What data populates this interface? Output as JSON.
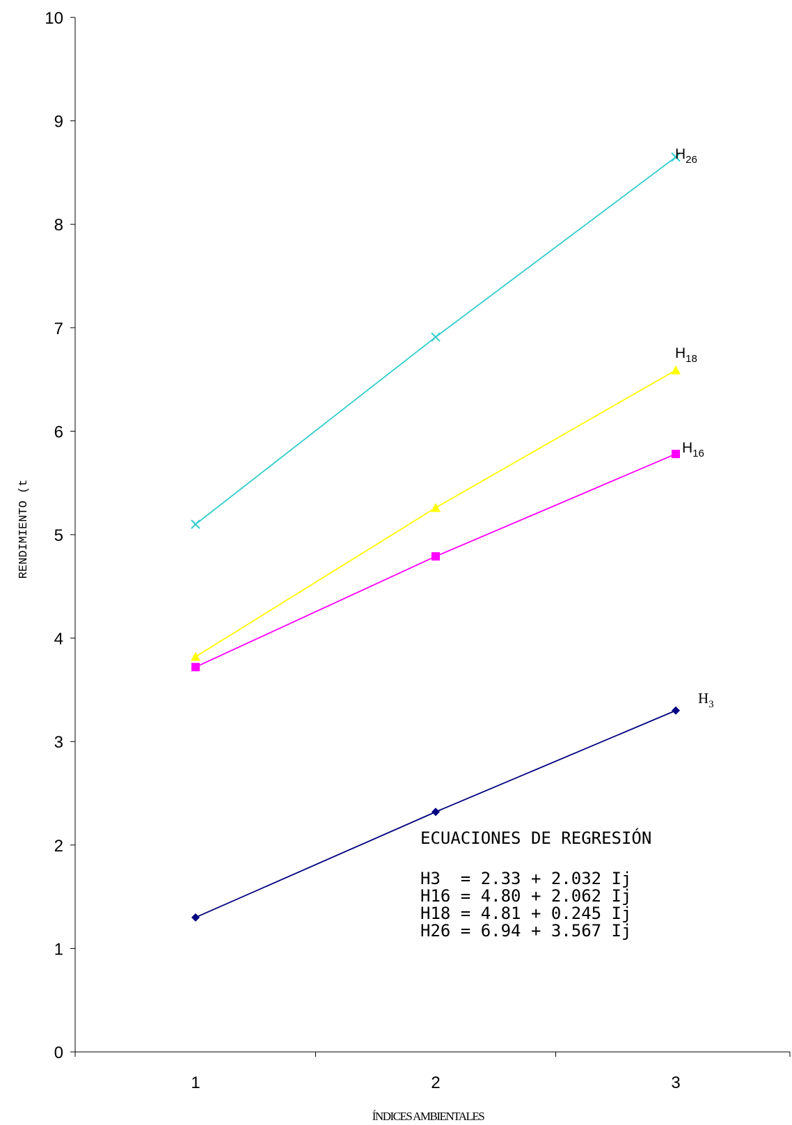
{
  "chart_data": {
    "type": "line",
    "x": [
      1,
      2,
      3
    ],
    "x_tick_labels": [
      "1",
      "2",
      "3"
    ],
    "y_tick_labels": [
      "0",
      "1",
      "2",
      "3",
      "4",
      "5",
      "6",
      "7",
      "8",
      "9",
      "10"
    ],
    "ylim": [
      0,
      10
    ],
    "xlim": [
      0.5,
      3.5
    ],
    "xlabel": "ÍNDICES AMBIENTALES",
    "ylabel": "RENDIMIENTO (t",
    "grid": false,
    "series": [
      {
        "name": "H3",
        "label_main": "H",
        "label_sub": "3",
        "values": [
          1.3,
          2.32,
          3.3
        ],
        "color": "#000080",
        "marker": "diamond"
      },
      {
        "name": "H16",
        "label_main": "H",
        "label_sub": "16",
        "values": [
          3.72,
          4.79,
          5.78
        ],
        "color": "#FF00FF",
        "marker": "square"
      },
      {
        "name": "H18",
        "label_main": "H",
        "label_sub": "18",
        "values": [
          3.82,
          5.26,
          6.59
        ],
        "color": "#FFFF00",
        "marker": "triangle"
      },
      {
        "name": "H26",
        "label_main": "H",
        "label_sub": "26",
        "values": [
          5.1,
          6.91,
          8.65
        ],
        "color": "#33CCCC",
        "marker": "x"
      }
    ],
    "annotation": {
      "title": "ECUACIONES DE REGRESIÓN",
      "lines": [
        "H3  = 2.33 + 2.032 Ij",
        "H16 = 4.80 + 2.062 Ij",
        "H18 = 4.81 + 0.245 Ij",
        "H26 = 6.94 + 3.567 Ij"
      ]
    }
  }
}
